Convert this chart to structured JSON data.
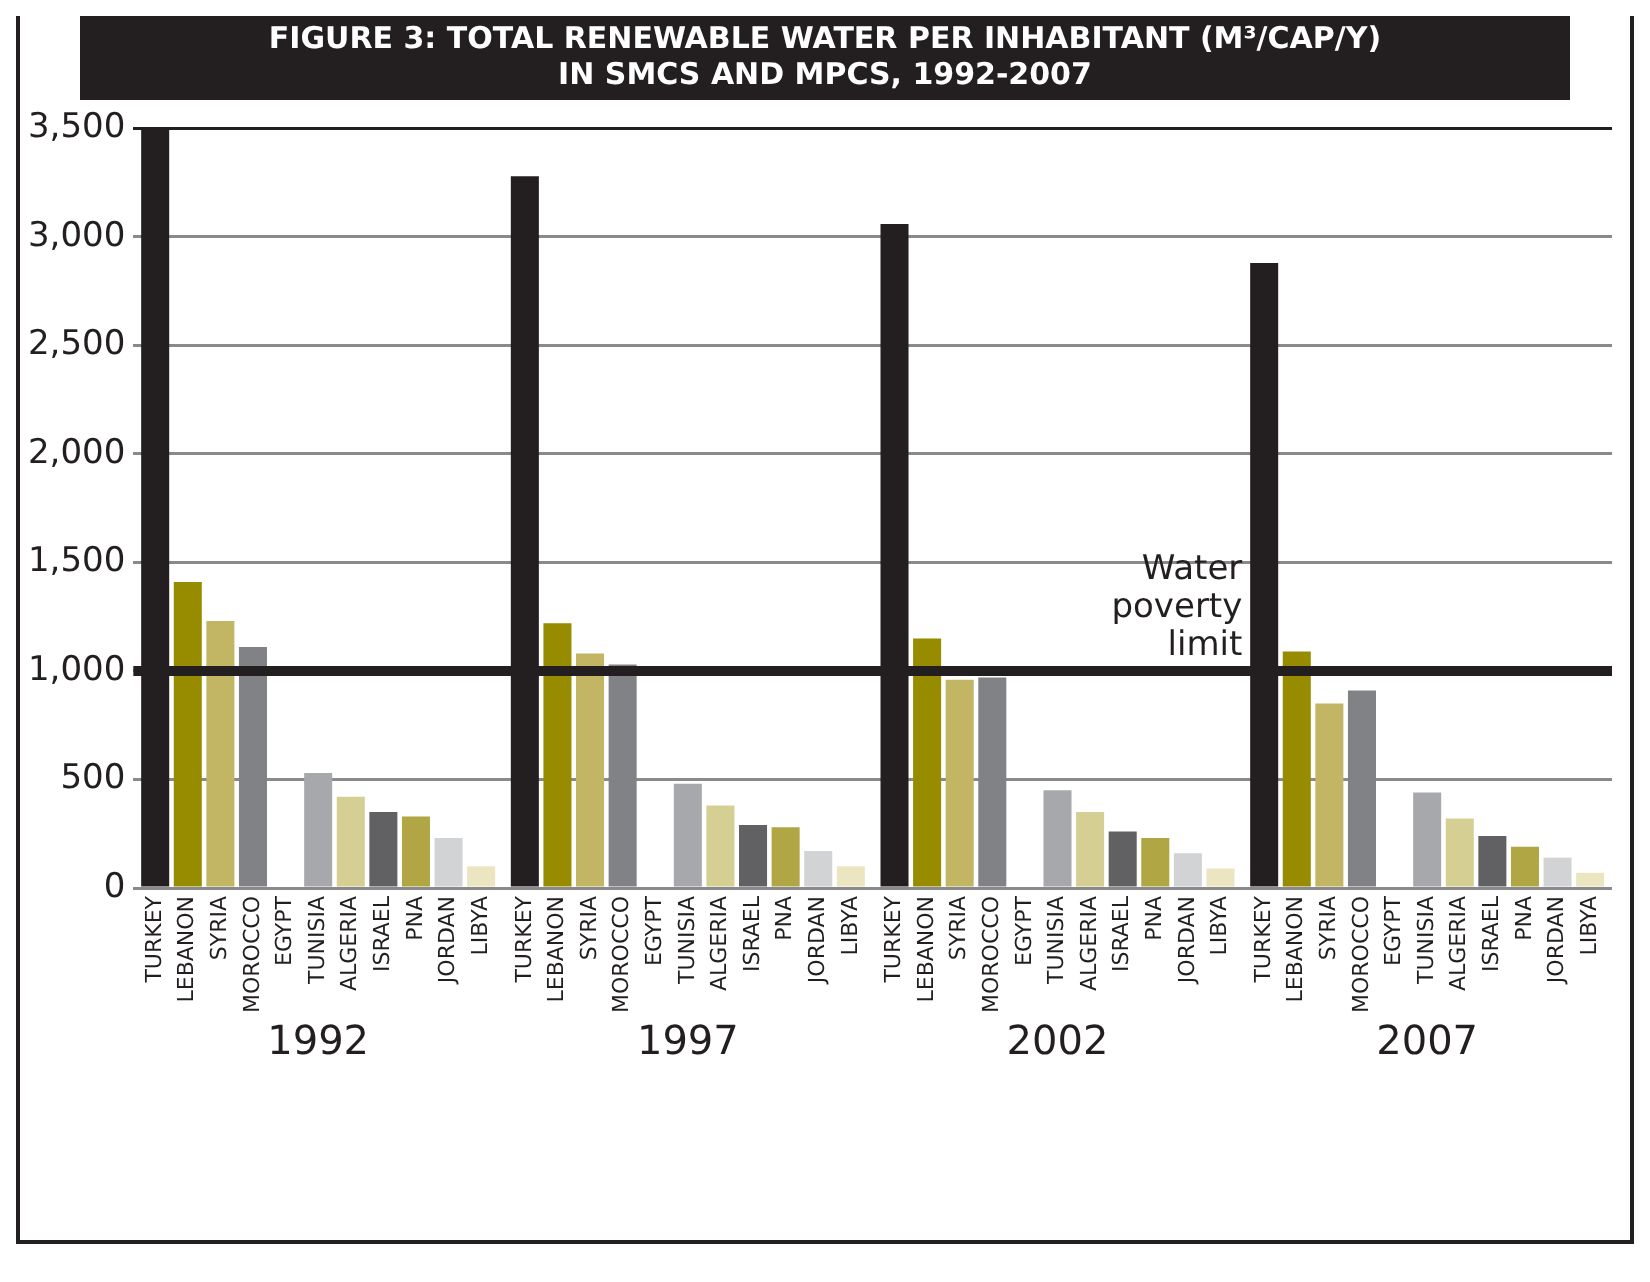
{
  "chart_data": {
    "type": "bar",
    "title": "FIGURE 3: TOTAL RENEWABLE WATER PER INHABITANT (M³/CAP/Y)",
    "subtitle": "IN SMCS AND MPCS, 1992-2007",
    "categories": [
      "1992",
      "1997",
      "2002",
      "2007"
    ],
    "series": [
      {
        "name": "TURKEY",
        "color": "#231f20",
        "values": [
          3500,
          3280,
          3060,
          2880
        ]
      },
      {
        "name": "LEBANON",
        "color": "#978c00",
        "values": [
          1410,
          1220,
          1150,
          1090
        ]
      },
      {
        "name": "SYRIA",
        "color": "#c2b664",
        "values": [
          1230,
          1080,
          960,
          850
        ]
      },
      {
        "name": "MOROCCO",
        "color": "#818285",
        "values": [
          1110,
          1030,
          970,
          910
        ]
      },
      {
        "name": "EGYPT",
        "values": [
          null,
          null,
          null,
          null
        ]
      },
      {
        "name": "TUNISIA",
        "color": "#a7a8ab",
        "values": [
          530,
          480,
          450,
          440
        ]
      },
      {
        "name": "ALGERIA",
        "color": "#d6cf93",
        "values": [
          420,
          380,
          350,
          320
        ]
      },
      {
        "name": "ISRAEL",
        "color": "#616163",
        "values": [
          350,
          290,
          260,
          240
        ]
      },
      {
        "name": "PNA",
        "color": "#b0a643",
        "values": [
          330,
          280,
          230,
          190
        ]
      },
      {
        "name": "JORDAN",
        "color": "#d2d3d5",
        "values": [
          230,
          170,
          160,
          140
        ]
      },
      {
        "name": "LIBYA",
        "color": "#ebe5c2",
        "values": [
          100,
          100,
          90,
          70
        ]
      }
    ],
    "ylim": [
      0,
      3500
    ],
    "yticks": [
      0,
      500,
      {
        "value": 1000,
        "label": "1,000"
      },
      {
        "value": 1500,
        "label": "1,500"
      },
      {
        "value": 2000,
        "label": "2,000"
      },
      {
        "value": 2500,
        "label": "2,500"
      },
      {
        "value": 3000,
        "label": "3,000"
      },
      {
        "value": 3500,
        "label": "3,500"
      }
    ],
    "grid": "y",
    "legend": false,
    "ref_lines": [
      {
        "axis": "y",
        "value": 1000,
        "label": "Water poverty limit",
        "color": "#231f20"
      }
    ]
  }
}
